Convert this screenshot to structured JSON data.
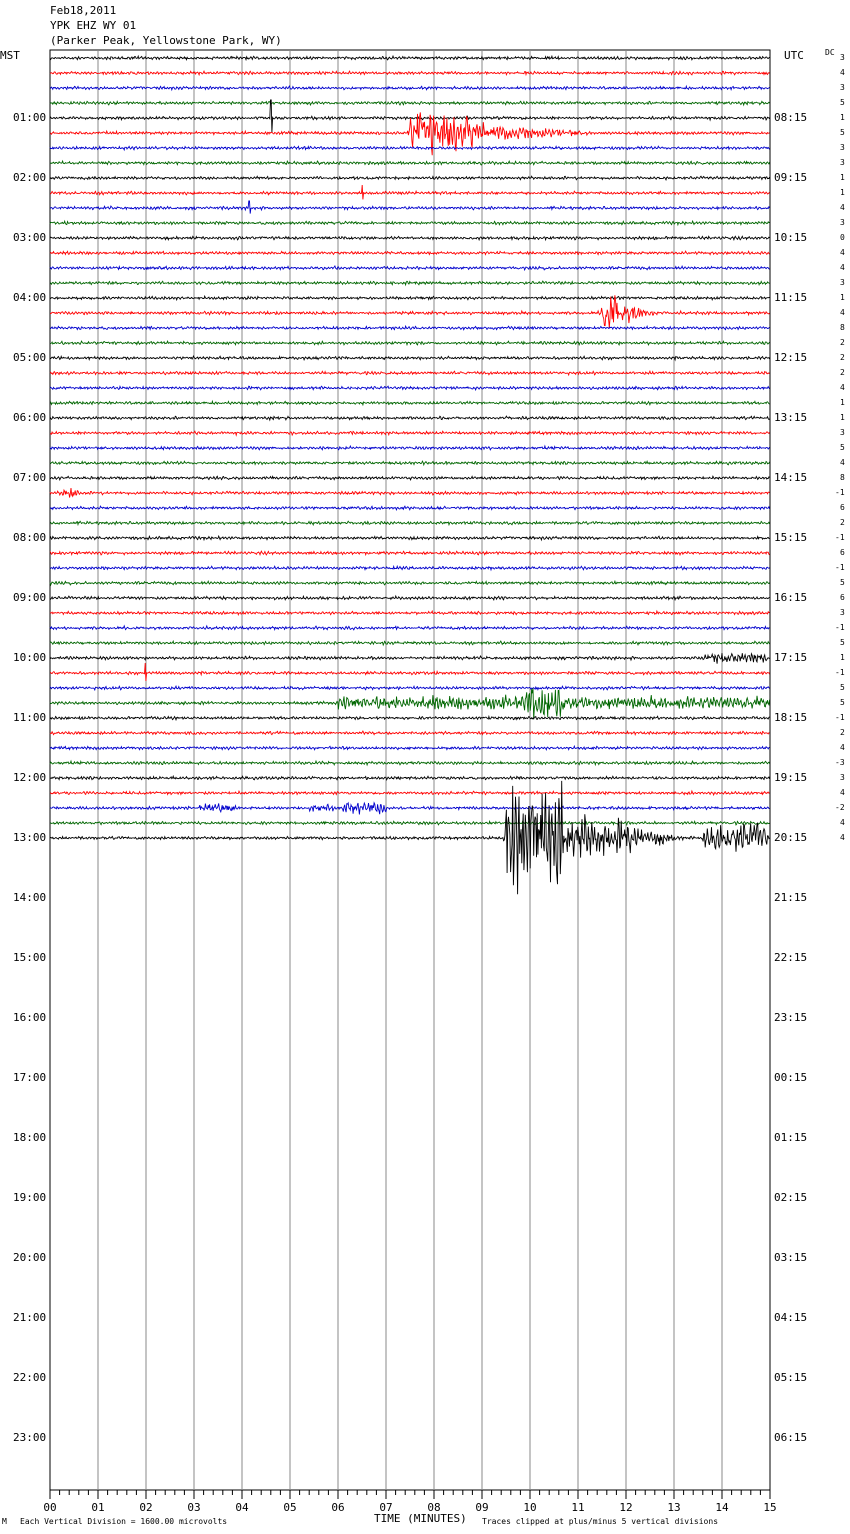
{
  "header": {
    "date": "Feb18,2011",
    "station": "YPK EHZ WY 01",
    "location": "(Parker Peak, Yellowstone Park, WY)"
  },
  "axis": {
    "left_label": "MST",
    "right_label": "UTC",
    "dc_label": "DC",
    "xlabel": "TIME (MINUTES)",
    "footer_left": "Each Vertical Division = 1600.00 microvolts",
    "footer_right": "Traces clipped at plus/minus 5 vertical divisions",
    "corner_mark": "M"
  },
  "chart_data": {
    "type": "line",
    "title": "YPK EHZ WY 01",
    "xlabel": "TIME (MINUTES)",
    "xlim": [
      0,
      15
    ],
    "x_ticks": [
      "00",
      "01",
      "02",
      "03",
      "04",
      "05",
      "06",
      "07",
      "08",
      "09",
      "10",
      "11",
      "12",
      "13",
      "14",
      "15"
    ],
    "rows_per_hour": 4,
    "minutes_per_row": 15,
    "hours_shown": 24,
    "rows_recorded": 53,
    "trace_colors": [
      "#000000",
      "#ff0000",
      "#0000cc",
      "#006600"
    ],
    "mst_labels": [
      "01:00",
      "02:00",
      "03:00",
      "04:00",
      "05:00",
      "06:00",
      "07:00",
      "08:00",
      "09:00",
      "10:00",
      "11:00",
      "12:00",
      "13:00",
      "14:00",
      "15:00",
      "16:00",
      "17:00",
      "18:00",
      "19:00",
      "20:00",
      "21:00",
      "22:00",
      "23:00"
    ],
    "utc_labels": [
      "08:15",
      "09:15",
      "10:15",
      "11:15",
      "12:15",
      "13:15",
      "14:15",
      "15:15",
      "16:15",
      "17:15",
      "18:15",
      "19:15",
      "20:15",
      "21:15",
      "22:15",
      "23:15",
      "00:15",
      "01:15",
      "02:15",
      "03:15",
      "04:15",
      "05:15",
      "06:15"
    ],
    "dc_offsets": [
      "3",
      "4",
      "3",
      "5",
      "1",
      "5",
      "3",
      "3",
      "1",
      "1",
      "4",
      "3",
      "0",
      "4",
      "4",
      "3",
      "1",
      "4",
      "8",
      "2",
      "2",
      "2",
      "4",
      "1",
      "1",
      "3",
      "5",
      "4",
      "8",
      "-1",
      "6",
      "2",
      "-1",
      "6",
      "-1",
      "5",
      "6",
      "3",
      "-1",
      "5",
      "1",
      "-1",
      "5",
      "5",
      "-1",
      "2",
      "4",
      "-3",
      "3",
      "4",
      "-2",
      "4",
      "4"
    ],
    "events": [
      {
        "row": 4,
        "minute": 4.6,
        "kind": "spike",
        "amp": 18
      },
      {
        "row": 5,
        "minute": 7.5,
        "kind": "burst",
        "amp": 14,
        "duration": 1.3,
        "tail": 2.6
      },
      {
        "row": 9,
        "minute": 6.5,
        "kind": "spike",
        "amp": 8
      },
      {
        "row": 10,
        "minute": 4.15,
        "kind": "spike",
        "amp": 7
      },
      {
        "row": 17,
        "minute": 11.55,
        "kind": "burst",
        "amp": 16,
        "duration": 0.35,
        "tail": 0.8
      },
      {
        "row": 29,
        "minute": 0.25,
        "kind": "burst",
        "amp": 4,
        "duration": 0.3,
        "tail": 0.2
      },
      {
        "row": 40,
        "minute": 13.6,
        "kind": "band",
        "amp": 3.5,
        "duration": 1.35
      },
      {
        "row": 41,
        "minute": 1.98,
        "kind": "spike",
        "amp": 10
      },
      {
        "row": 43,
        "minute": 6.0,
        "kind": "band",
        "amp": 4.5,
        "duration": 9.0
      },
      {
        "row": 43,
        "minute": 9.85,
        "kind": "burst",
        "amp": 12,
        "duration": 0.8,
        "tail": 1.5
      },
      {
        "row": 50,
        "minute": 3.1,
        "kind": "band",
        "amp": 3,
        "duration": 0.8
      },
      {
        "row": 50,
        "minute": 5.4,
        "kind": "band",
        "amp": 3,
        "duration": 0.5
      },
      {
        "row": 50,
        "minute": 6.1,
        "kind": "band",
        "amp": 4,
        "duration": 0.9
      },
      {
        "row": 52,
        "minute": 9.5,
        "kind": "burst",
        "amp": 40,
        "duration": 1.2,
        "tail": 2.5
      },
      {
        "row": 52,
        "minute": 13.6,
        "kind": "band",
        "amp": 10,
        "duration": 1.4
      }
    ]
  }
}
